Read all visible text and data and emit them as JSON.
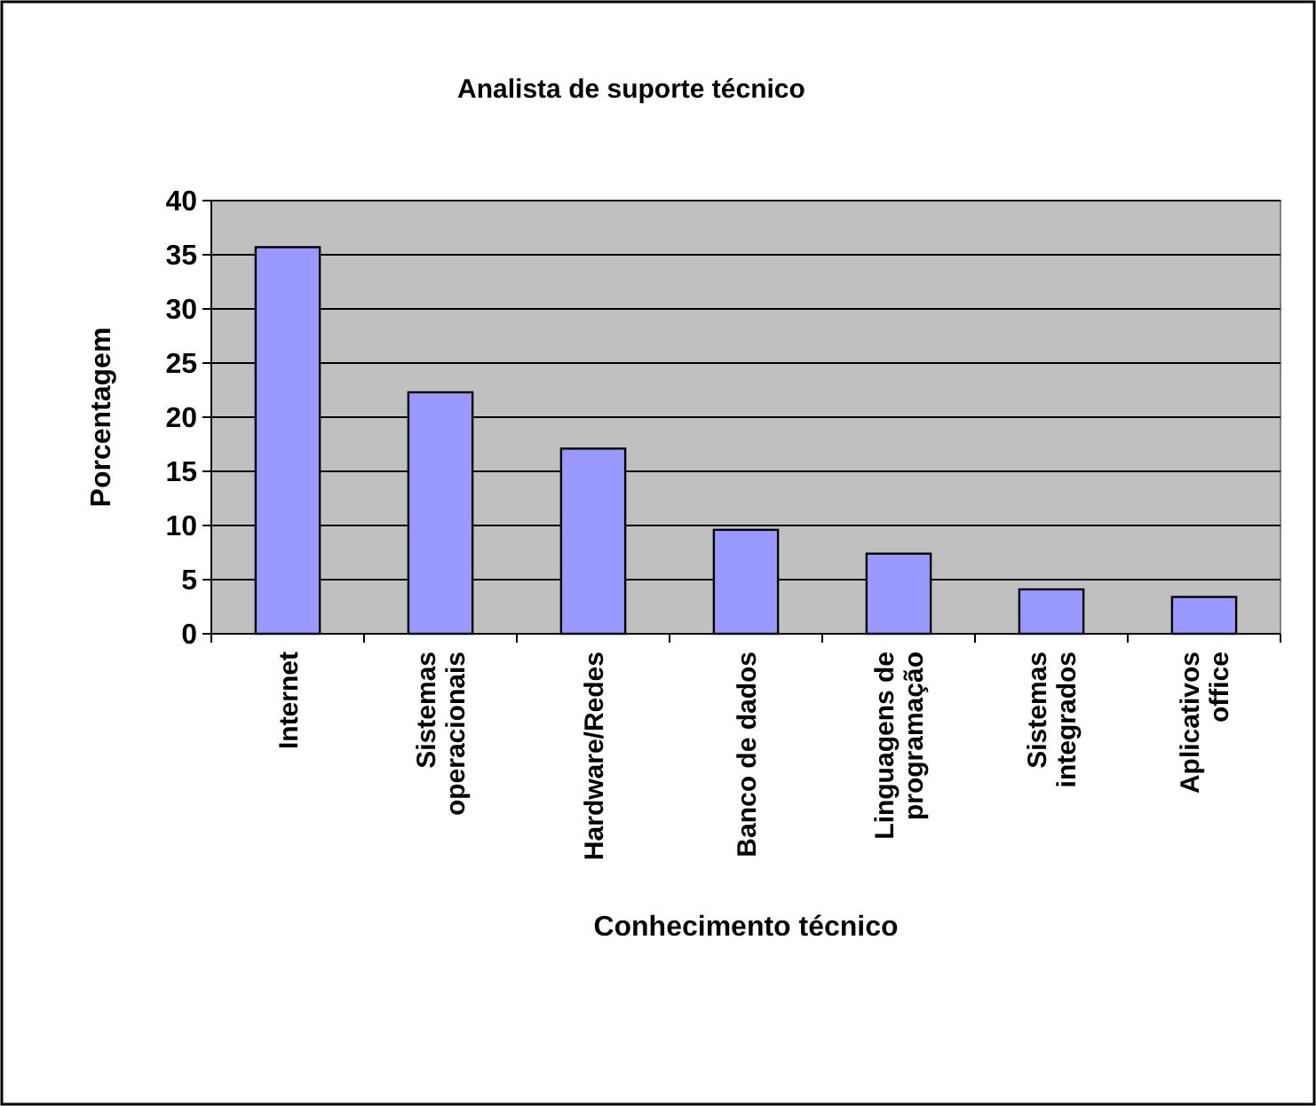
{
  "chart_data": {
    "type": "bar",
    "title": "Analista de suporte técnico",
    "xlabel": "Conhecimento técnico",
    "ylabel": "Porcentagem",
    "categories": [
      "Internet",
      "Sistemas\noperacionais",
      "Hardware/Redes",
      "Banco de dados",
      "Linguagens de\nprogramação",
      "Sistemas\nintegrados",
      "Aplicativos\noffice"
    ],
    "values": [
      35.7,
      22.3,
      17.1,
      9.6,
      7.4,
      4.1,
      3.4
    ],
    "color": "#9999ff",
    "ylim": [
      0,
      40
    ],
    "yticks": [
      0,
      5,
      10,
      15,
      20,
      25,
      30,
      35,
      40
    ],
    "grid": "y"
  }
}
